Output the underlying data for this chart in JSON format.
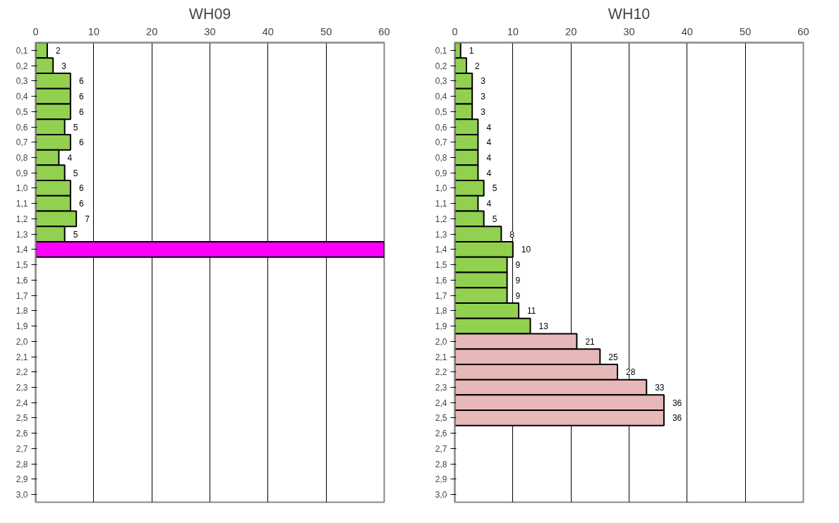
{
  "chart_data": [
    {
      "type": "bar",
      "title": "WH09",
      "orientation": "horizontal",
      "categories": [
        "0,1",
        "0,2",
        "0,3",
        "0,4",
        "0,5",
        "0,6",
        "0,7",
        "0,8",
        "0,9",
        "1,0",
        "1,1",
        "1,2",
        "1,3",
        "1,4",
        "1,5",
        "1,6",
        "1,7",
        "1,8",
        "1,9",
        "2,0",
        "2,1",
        "2,2",
        "2,3",
        "2,4",
        "2,5",
        "2,6",
        "2,7",
        "2,8",
        "2,9",
        "3,0"
      ],
      "values": [
        2,
        3,
        6,
        6,
        6,
        5,
        6,
        4,
        5,
        6,
        6,
        7,
        5,
        60,
        null,
        null,
        null,
        null,
        null,
        null,
        null,
        null,
        null,
        null,
        null,
        null,
        null,
        null,
        null,
        null
      ],
      "value_labels": [
        "2",
        "3",
        "6",
        "6",
        "6",
        "5",
        "6",
        "4",
        "5",
        "6",
        "6",
        "7",
        "5",
        null,
        null,
        null,
        null,
        null,
        null,
        null,
        null,
        null,
        null,
        null,
        null,
        null,
        null,
        null,
        null,
        null
      ],
      "colors": [
        "#92d050",
        "#92d050",
        "#92d050",
        "#92d050",
        "#92d050",
        "#92d050",
        "#92d050",
        "#92d050",
        "#92d050",
        "#92d050",
        "#92d050",
        "#92d050",
        "#92d050",
        "#ff00ff",
        "#92d050",
        "#92d050",
        "#92d050",
        "#92d050",
        "#92d050",
        "#92d050",
        "#92d050",
        "#92d050",
        "#92d050",
        "#92d050",
        "#92d050",
        "#92d050",
        "#92d050",
        "#92d050",
        "#92d050",
        "#92d050"
      ],
      "xlim": [
        0,
        60
      ],
      "xticks": [
        0,
        10,
        20,
        30,
        40,
        50,
        60
      ],
      "grid": "x"
    },
    {
      "type": "bar",
      "title": "WH10",
      "orientation": "horizontal",
      "categories": [
        "0,1",
        "0,2",
        "0,3",
        "0,4",
        "0,5",
        "0,6",
        "0,7",
        "0,8",
        "0,9",
        "1,0",
        "1,1",
        "1,2",
        "1,3",
        "1,4",
        "1,5",
        "1,6",
        "1,7",
        "1,8",
        "1,9",
        "2,0",
        "2,1",
        "2,2",
        "2,3",
        "2,4",
        "2,5",
        "2,6",
        "2,7",
        "2,8",
        "2,9",
        "3,0"
      ],
      "values": [
        1,
        2,
        3,
        3,
        3,
        4,
        4,
        4,
        4,
        5,
        4,
        5,
        8,
        10,
        9,
        9,
        9,
        11,
        13,
        21,
        25,
        28,
        33,
        36,
        36,
        null,
        null,
        null,
        null,
        null
      ],
      "data_labels": true,
      "colors": [
        "#92d050",
        "#92d050",
        "#92d050",
        "#92d050",
        "#92d050",
        "#92d050",
        "#92d050",
        "#92d050",
        "#92d050",
        "#92d050",
        "#92d050",
        "#92d050",
        "#92d050",
        "#92d050",
        "#92d050",
        "#92d050",
        "#92d050",
        "#92d050",
        "#92d050",
        "#e6b8b7",
        "#e6b8b7",
        "#e6b8b7",
        "#e6b8b7",
        "#e6b8b7",
        "#e6b8b7",
        "#e6b8b7",
        "#e6b8b7",
        "#e6b8b7",
        "#e6b8b7",
        "#e6b8b7"
      ],
      "xlim": [
        0,
        60
      ],
      "xticks": [
        0,
        10,
        20,
        30,
        40,
        50,
        60
      ],
      "grid": "x"
    }
  ]
}
